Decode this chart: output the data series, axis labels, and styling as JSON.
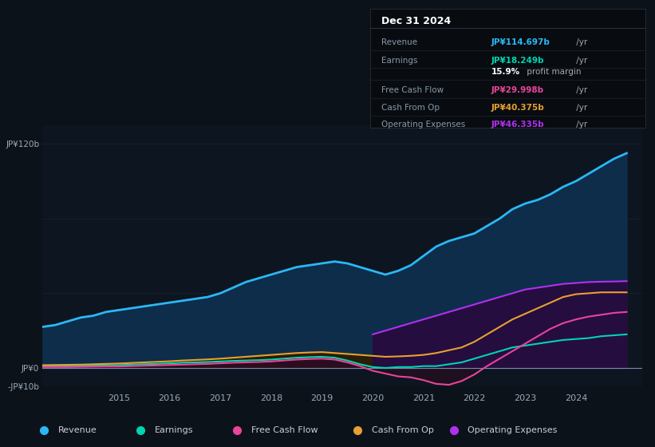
{
  "background_color": "#0c1219",
  "chart_bg": "#0d1520",
  "grid_color": "#1a2535",
  "ylim": [
    -10,
    130
  ],
  "years": [
    2013.5,
    2013.75,
    2014.0,
    2014.25,
    2014.5,
    2014.75,
    2015.0,
    2015.25,
    2015.5,
    2015.75,
    2016.0,
    2016.25,
    2016.5,
    2016.75,
    2017.0,
    2017.25,
    2017.5,
    2017.75,
    2018.0,
    2018.25,
    2018.5,
    2018.75,
    2019.0,
    2019.25,
    2019.5,
    2019.75,
    2020.0,
    2020.25,
    2020.5,
    2020.75,
    2021.0,
    2021.25,
    2021.5,
    2021.75,
    2022.0,
    2022.25,
    2022.5,
    2022.75,
    2023.0,
    2023.25,
    2023.5,
    2023.75,
    2024.0,
    2024.25,
    2024.5,
    2024.75,
    2025.0
  ],
  "revenue": [
    22,
    23,
    25,
    27,
    28,
    30,
    31,
    32,
    33,
    34,
    35,
    36,
    37,
    38,
    40,
    43,
    46,
    48,
    50,
    52,
    54,
    55,
    56,
    57,
    56,
    54,
    52,
    50,
    52,
    55,
    60,
    65,
    68,
    70,
    72,
    76,
    80,
    85,
    88,
    90,
    93,
    97,
    100,
    104,
    108,
    112,
    115
  ],
  "earnings": [
    1.0,
    1.0,
    1.1,
    1.2,
    1.3,
    1.4,
    1.5,
    1.8,
    2.0,
    2.2,
    2.5,
    2.8,
    3.0,
    3.2,
    3.5,
    3.8,
    4.0,
    4.2,
    4.5,
    5.0,
    5.5,
    5.8,
    6.0,
    5.5,
    4.0,
    2.0,
    0.5,
    0.0,
    0.5,
    0.5,
    1.0,
    1.0,
    2.0,
    3.0,
    5.0,
    7.0,
    9.0,
    11.0,
    12.0,
    13.0,
    14.0,
    15.0,
    15.5,
    16.0,
    17.0,
    17.5,
    18.0
  ],
  "free_cash_flow": [
    0.5,
    0.5,
    0.5,
    0.6,
    0.7,
    0.8,
    0.8,
    1.0,
    1.2,
    1.4,
    1.6,
    1.8,
    2.0,
    2.2,
    2.5,
    2.8,
    3.0,
    3.2,
    3.5,
    4.0,
    4.5,
    4.8,
    5.0,
    4.5,
    3.0,
    1.0,
    -1.5,
    -3.0,
    -4.5,
    -5.0,
    -6.5,
    -8.5,
    -9.0,
    -7.0,
    -3.5,
    1.0,
    5.0,
    9.0,
    13.0,
    17.0,
    21.0,
    24.0,
    26.0,
    27.5,
    28.5,
    29.5,
    30.0
  ],
  "cash_from_op": [
    1.5,
    1.6,
    1.7,
    1.8,
    2.0,
    2.2,
    2.4,
    2.7,
    3.0,
    3.3,
    3.6,
    4.0,
    4.3,
    4.6,
    5.0,
    5.5,
    6.0,
    6.5,
    7.0,
    7.5,
    8.0,
    8.3,
    8.5,
    8.0,
    7.5,
    7.0,
    6.5,
    6.0,
    6.2,
    6.5,
    7.0,
    8.0,
    9.5,
    11.0,
    14.0,
    18.0,
    22.0,
    26.0,
    29.0,
    32.0,
    35.0,
    38.0,
    39.5,
    40.0,
    40.5,
    40.5,
    40.5
  ],
  "op_expenses": [
    null,
    null,
    null,
    null,
    null,
    null,
    null,
    null,
    null,
    null,
    null,
    null,
    null,
    null,
    null,
    null,
    null,
    null,
    null,
    null,
    null,
    null,
    null,
    null,
    null,
    null,
    18.0,
    20.0,
    22.0,
    24.0,
    26.0,
    28.0,
    30.0,
    32.0,
    34.0,
    36.0,
    38.0,
    40.0,
    42.0,
    43.0,
    44.0,
    45.0,
    45.5,
    46.0,
    46.2,
    46.3,
    46.5
  ],
  "revenue_color": "#2ab8f5",
  "revenue_fill": "#0d2d4a",
  "earnings_color": "#00d4b0",
  "earnings_fill": "#0a2828",
  "free_cash_flow_color": "#e8449a",
  "free_cash_flow_fill": "#2a0d1e",
  "cash_from_op_color": "#e8a030",
  "cash_from_op_fill": "#2a1e08",
  "op_expenses_color": "#b030f0",
  "op_expenses_fill": "#250d40",
  "info_table": {
    "date": "Dec 31 2024",
    "rows": [
      {
        "label": "Revenue",
        "value": "JP¥114.697b",
        "unit": " /yr",
        "value_color": "#2ab8f5"
      },
      {
        "label": "Earnings",
        "value": "JP¥18.249b",
        "unit": " /yr",
        "value_color": "#00d4b0"
      },
      {
        "label": "",
        "value": "15.9%",
        "unit": " profit margin",
        "value_color": "#ffffff"
      },
      {
        "label": "Free Cash Flow",
        "value": "JP¥29.998b",
        "unit": " /yr",
        "value_color": "#e8449a"
      },
      {
        "label": "Cash From Op",
        "value": "JP¥40.375b",
        "unit": " /yr",
        "value_color": "#e8a030"
      },
      {
        "label": "Operating Expenses",
        "value": "JP¥46.335b",
        "unit": " /yr",
        "value_color": "#b030f0"
      }
    ]
  },
  "legend": [
    {
      "label": "Revenue",
      "color": "#2ab8f5"
    },
    {
      "label": "Earnings",
      "color": "#00d4b0"
    },
    {
      "label": "Free Cash Flow",
      "color": "#e8449a"
    },
    {
      "label": "Cash From Op",
      "color": "#e8a030"
    },
    {
      "label": "Operating Expenses",
      "color": "#b030f0"
    }
  ]
}
